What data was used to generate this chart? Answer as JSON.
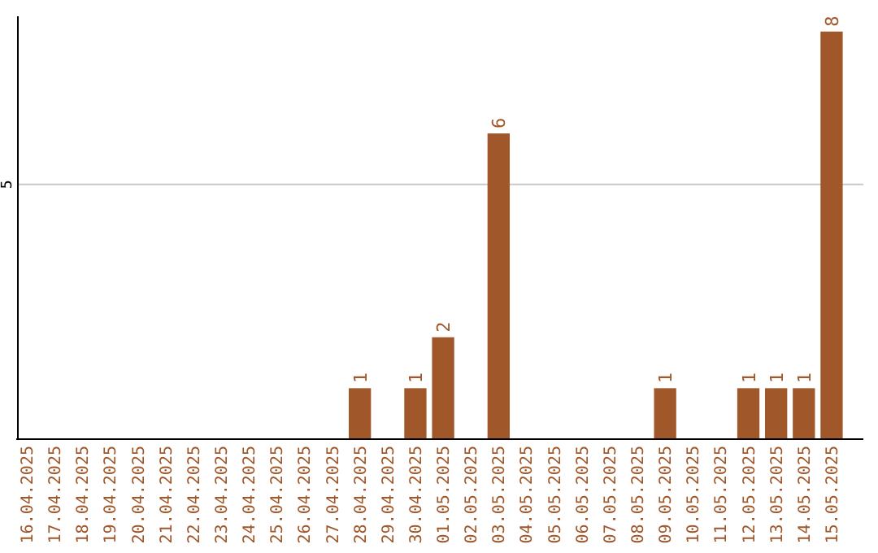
{
  "chart_data": {
    "type": "bar",
    "categories": [
      "16.04.2025",
      "17.04.2025",
      "18.04.2025",
      "19.04.2025",
      "20.04.2025",
      "21.04.2025",
      "22.04.2025",
      "23.04.2025",
      "24.04.2025",
      "25.04.2025",
      "26.04.2025",
      "27.04.2025",
      "28.04.2025",
      "29.04.2025",
      "30.04.2025",
      "01.05.2025",
      "02.05.2025",
      "03.05.2025",
      "04.05.2025",
      "05.05.2025",
      "06.05.2025",
      "07.05.2025",
      "08.05.2025",
      "09.05.2025",
      "10.05.2025",
      "11.05.2025",
      "12.05.2025",
      "13.05.2025",
      "14.05.2025",
      "15.05.2025"
    ],
    "values": [
      null,
      null,
      null,
      null,
      null,
      null,
      null,
      null,
      null,
      null,
      null,
      null,
      1,
      null,
      1,
      2,
      null,
      6,
      null,
      null,
      null,
      null,
      null,
      1,
      null,
      null,
      1,
      1,
      1,
      8
    ],
    "data_labels": true,
    "color": "#a0572a",
    "ylim": [
      0,
      8.3
    ],
    "yticks": [
      5
    ],
    "grid": "y"
  }
}
